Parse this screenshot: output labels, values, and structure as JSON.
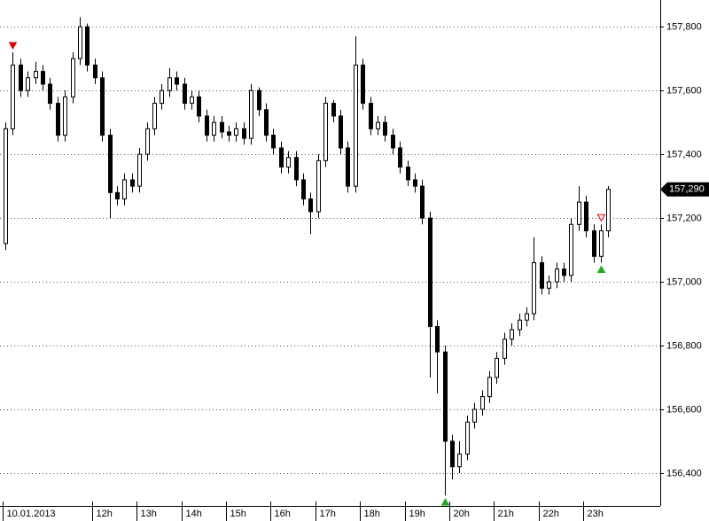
{
  "chart_data": {
    "type": "candlestick",
    "categories": [
      "10.01.2013",
      null,
      null,
      null,
      null,
      null,
      null,
      null,
      null,
      null,
      null,
      null,
      "12h",
      null,
      null,
      null,
      null,
      null,
      "13h",
      null,
      null,
      null,
      null,
      null,
      "14h",
      null,
      null,
      null,
      null,
      null,
      "15h",
      null,
      null,
      null,
      null,
      null,
      "16h",
      null,
      null,
      null,
      null,
      null,
      "17h",
      null,
      null,
      null,
      null,
      null,
      "18h",
      null,
      null,
      null,
      null,
      null,
      "19h",
      null,
      null,
      null,
      null,
      null,
      "20h",
      null,
      null,
      null,
      null,
      null,
      "21h",
      null,
      null,
      null,
      null,
      null,
      "22h",
      null,
      null,
      null,
      null,
      null,
      "23h",
      null,
      null,
      null
    ],
    "open": [
      157120,
      157480,
      157680,
      157600,
      157640,
      157660,
      157620,
      157560,
      157460,
      157580,
      157700,
      157800,
      157680,
      157640,
      157460,
      157280,
      157260,
      157320,
      157300,
      157400,
      157480,
      157560,
      157600,
      157640,
      157620,
      157560,
      157580,
      157520,
      157460,
      157500,
      157470,
      157460,
      157480,
      157450,
      157600,
      157540,
      157460,
      157420,
      157360,
      157390,
      157320,
      157260,
      157220,
      157380,
      157560,
      157520,
      157420,
      157300,
      157680,
      157560,
      157480,
      157500,
      157460,
      157420,
      157360,
      157320,
      157300,
      157200,
      156860,
      156780,
      156500,
      156420,
      156460,
      156560,
      156600,
      156640,
      156700,
      156760,
      156820,
      156850,
      156880,
      156900,
      157060,
      156980,
      157000,
      157040,
      157020,
      157180,
      157250,
      157160,
      157080,
      157160
    ],
    "high": [
      157500,
      157720,
      157700,
      157660,
      157690,
      157680,
      157640,
      157580,
      157600,
      157720,
      157830,
      157810,
      157700,
      157660,
      157480,
      157300,
      157340,
      157340,
      157420,
      157500,
      157580,
      157620,
      157670,
      157660,
      157640,
      157600,
      157600,
      157540,
      157520,
      157520,
      157490,
      157500,
      157500,
      157620,
      157610,
      157560,
      157480,
      157440,
      157410,
      157410,
      157340,
      157280,
      157400,
      157580,
      157570,
      157540,
      157440,
      157770,
      157700,
      157580,
      157520,
      157520,
      157480,
      157440,
      157380,
      157340,
      157320,
      157220,
      156880,
      156800,
      156520,
      156500,
      156580,
      156620,
      156660,
      156720,
      156780,
      156840,
      156870,
      156900,
      156920,
      157140,
      157080,
      157020,
      157060,
      157060,
      157200,
      157300,
      157270,
      157180,
      157180,
      157300
    ],
    "low": [
      157100,
      157460,
      157580,
      157580,
      157620,
      157600,
      157540,
      157440,
      157440,
      157560,
      157680,
      157660,
      157620,
      157440,
      157200,
      157240,
      157240,
      157280,
      157280,
      157380,
      157460,
      157540,
      157580,
      157600,
      157540,
      157540,
      157500,
      157440,
      157440,
      157450,
      157440,
      157440,
      157430,
      157430,
      157520,
      157440,
      157400,
      157340,
      157340,
      157300,
      157240,
      157150,
      157200,
      157360,
      157500,
      157400,
      157280,
      157280,
      157540,
      157460,
      157460,
      157440,
      157400,
      157340,
      157300,
      157280,
      157180,
      156700,
      156650,
      156330,
      156380,
      156400,
      156440,
      156540,
      156580,
      156620,
      156680,
      156740,
      156800,
      156830,
      156860,
      156880,
      156960,
      156960,
      156980,
      157000,
      157000,
      157160,
      157140,
      157060,
      157060,
      157140
    ],
    "close": [
      157480,
      157680,
      157600,
      157640,
      157660,
      157620,
      157560,
      157460,
      157580,
      157700,
      157800,
      157680,
      157640,
      157460,
      157280,
      157260,
      157320,
      157300,
      157400,
      157480,
      157560,
      157600,
      157640,
      157620,
      157560,
      157580,
      157520,
      157460,
      157500,
      157470,
      157460,
      157480,
      157450,
      157600,
      157540,
      157460,
      157420,
      157360,
      157390,
      157320,
      157260,
      157220,
      157380,
      157560,
      157520,
      157420,
      157300,
      157680,
      157560,
      157480,
      157500,
      157460,
      157420,
      157360,
      157320,
      157300,
      157200,
      156860,
      156780,
      156500,
      156420,
      156460,
      156560,
      156600,
      156640,
      156700,
      156760,
      156820,
      156850,
      156880,
      156900,
      157060,
      156980,
      157000,
      157040,
      157020,
      157180,
      157250,
      157160,
      157080,
      157160,
      157290
    ],
    "ylim": [
      156297,
      157884
    ],
    "yticks": [
      {
        "value": 156400,
        "label": "156,400"
      },
      {
        "value": 156600,
        "label": "156,600"
      },
      {
        "value": 156800,
        "label": "156,800"
      },
      {
        "value": 157000,
        "label": "157,000"
      },
      {
        "value": 157200,
        "label": "157,200"
      },
      {
        "value": 157400,
        "label": "157,400"
      },
      {
        "value": 157600,
        "label": "157,600"
      },
      {
        "value": 157800,
        "label": "157,800"
      }
    ],
    "last_price": {
      "value": 157290,
      "label": "157,290"
    },
    "grid": true,
    "up_color": "#ffffff",
    "down_color": "#000000"
  }
}
